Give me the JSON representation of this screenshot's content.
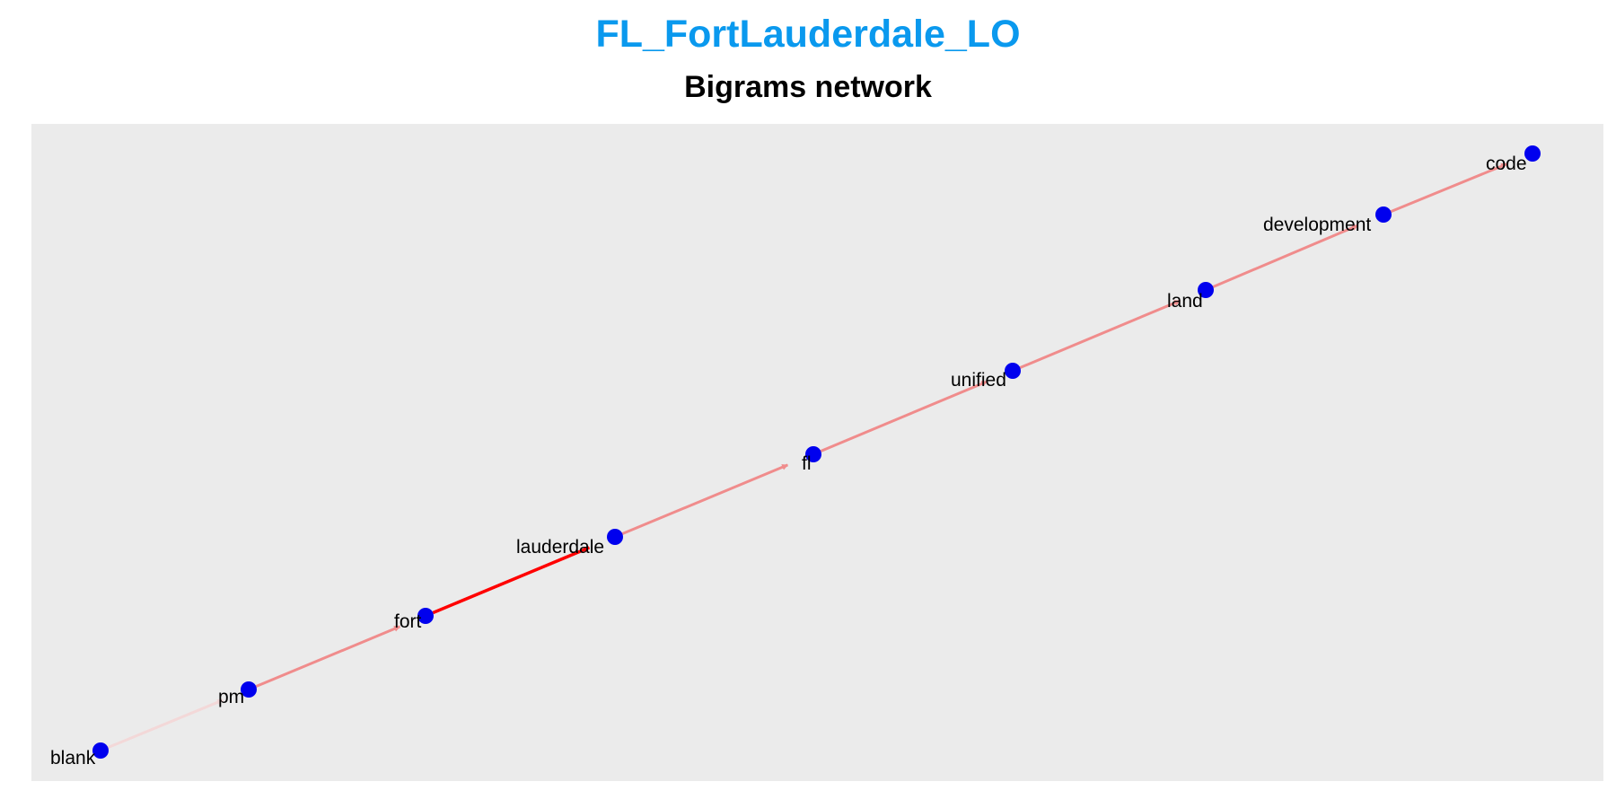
{
  "title": "FL_FortLauderdale_LO",
  "subtitle": "Bigrams network",
  "colors": {
    "title": "#0a99ee",
    "panel_background": "#ebebeb",
    "node": "#0000ee",
    "edge_strong": "#ff0000",
    "edge_normal": "#f08c8c",
    "edge_weak": "#f3d8d8"
  },
  "graph": {
    "nodes": [
      {
        "id": "blank",
        "label": "blank"
      },
      {
        "id": "pm",
        "label": "pm"
      },
      {
        "id": "fort",
        "label": "fort"
      },
      {
        "id": "lauderdale",
        "label": "lauderdale"
      },
      {
        "id": "fl",
        "label": "fl"
      },
      {
        "id": "unified",
        "label": "unified"
      },
      {
        "id": "land",
        "label": "land"
      },
      {
        "id": "development",
        "label": "development"
      },
      {
        "id": "code",
        "label": "code"
      }
    ],
    "edges": [
      {
        "from": "blank",
        "to": "pm",
        "strength": "weak"
      },
      {
        "from": "pm",
        "to": "fort",
        "strength": "normal"
      },
      {
        "from": "fort",
        "to": "lauderdale",
        "strength": "strong"
      },
      {
        "from": "lauderdale",
        "to": "fl",
        "strength": "normal"
      },
      {
        "from": "fl",
        "to": "unified",
        "strength": "normal"
      },
      {
        "from": "unified",
        "to": "land",
        "strength": "normal"
      },
      {
        "from": "land",
        "to": "development",
        "strength": "normal"
      },
      {
        "from": "development",
        "to": "code",
        "strength": "normal"
      }
    ]
  }
}
